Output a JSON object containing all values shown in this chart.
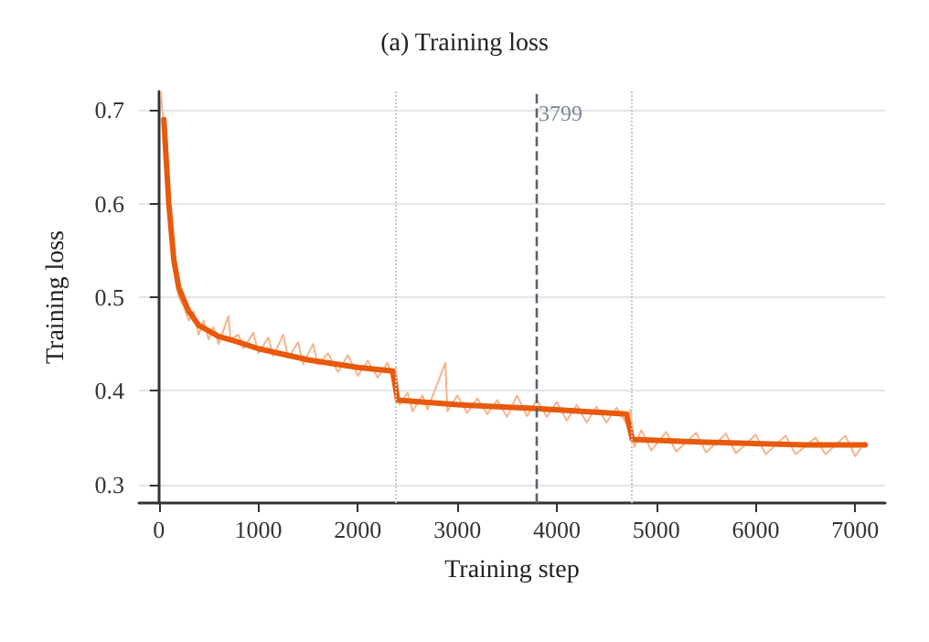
{
  "chart_data": {
    "type": "line",
    "title": "(a) Training loss",
    "xlabel": "Training step",
    "ylabel": "Training loss",
    "xlim": [
      -200,
      7300
    ],
    "xticks": [
      0,
      1000,
      2000,
      3000,
      4000,
      5000,
      6000,
      7000
    ],
    "ylim": [
      0.28,
      0.72
    ],
    "yticks": [
      0.3,
      0.4,
      0.5,
      0.6,
      0.7
    ],
    "grid": "y",
    "marker": "none",
    "line_style": "solid",
    "series": [
      {
        "color": "#f5b48c",
        "x": [
          20,
          50,
          80,
          110,
          150,
          200,
          250,
          300,
          350,
          400,
          450,
          500,
          550,
          600,
          700,
          720,
          800,
          850,
          950,
          1000,
          1100,
          1150,
          1250,
          1300,
          1400,
          1450,
          1550,
          1600,
          1700,
          1800,
          1900,
          2000,
          2100,
          2200,
          2300,
          2350,
          2380,
          2420,
          2500,
          2550,
          2650,
          2700,
          2880,
          2900,
          3000,
          3100,
          3200,
          3300,
          3400,
          3500,
          3600,
          3700,
          3800,
          3900,
          4000,
          4100,
          4200,
          4300,
          4400,
          4500,
          4600,
          4700,
          4740,
          4780,
          4850,
          4950,
          5100,
          5200,
          5400,
          5500,
          5700,
          5800,
          6000,
          6100,
          6300,
          6400,
          6600,
          6700,
          6900,
          7000,
          7100
        ],
        "values": [
          0.72,
          0.68,
          0.63,
          0.57,
          0.53,
          0.5,
          0.49,
          0.475,
          0.485,
          0.46,
          0.475,
          0.455,
          0.468,
          0.45,
          0.48,
          0.455,
          0.46,
          0.445,
          0.462,
          0.44,
          0.457,
          0.437,
          0.46,
          0.435,
          0.452,
          0.428,
          0.45,
          0.428,
          0.44,
          0.42,
          0.438,
          0.416,
          0.432,
          0.414,
          0.43,
          0.412,
          0.425,
          0.385,
          0.398,
          0.378,
          0.395,
          0.38,
          0.43,
          0.378,
          0.395,
          0.376,
          0.392,
          0.375,
          0.39,
          0.372,
          0.395,
          0.373,
          0.39,
          0.372,
          0.388,
          0.368,
          0.385,
          0.366,
          0.383,
          0.366,
          0.382,
          0.365,
          0.38,
          0.34,
          0.358,
          0.336,
          0.356,
          0.335,
          0.355,
          0.334,
          0.354,
          0.333,
          0.353,
          0.332,
          0.352,
          0.332,
          0.35,
          0.332,
          0.352,
          0.33,
          0.345
        ]
      },
      {
        "color": "#e8590c",
        "x": [
          50,
          100,
          150,
          200,
          300,
          400,
          600,
          800,
          1000,
          1500,
          2000,
          2350,
          2400,
          3000,
          3799,
          4700,
          4760,
          5500,
          6500,
          7100
        ],
        "values": [
          0.69,
          0.6,
          0.54,
          0.51,
          0.485,
          0.47,
          0.458,
          0.452,
          0.445,
          0.433,
          0.425,
          0.421,
          0.39,
          0.385,
          0.381,
          0.375,
          0.348,
          0.345,
          0.342,
          0.342
        ]
      }
    ],
    "ref_lines": [
      {
        "axis": "x",
        "value": 2370,
        "color": "#c4c8cf",
        "line_style": "dotted"
      },
      {
        "axis": "x",
        "value": 3799,
        "label": "3799",
        "color": "#5a6270",
        "line_style": "dashed"
      },
      {
        "axis": "x",
        "value": 4750,
        "color": "#c4c8cf",
        "line_style": "dotted"
      }
    ]
  }
}
